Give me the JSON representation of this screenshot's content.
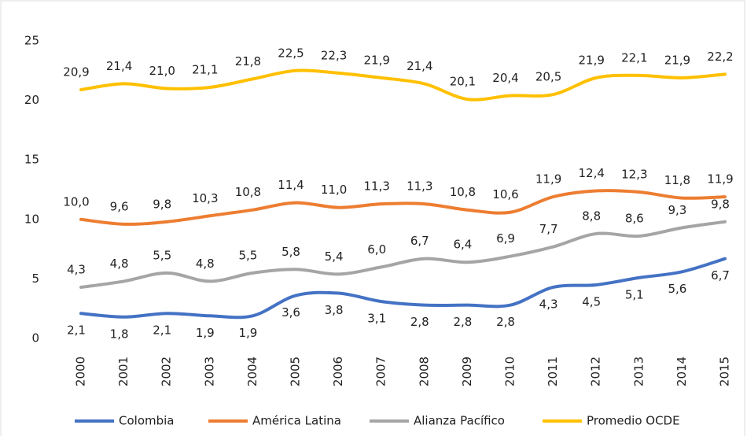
{
  "chart_data": {
    "type": "line",
    "categories": [
      "2000",
      "2001",
      "2002",
      "2003",
      "2004",
      "2005",
      "2006",
      "2007",
      "2008",
      "2009",
      "2010",
      "2011",
      "2012",
      "2013",
      "2014",
      "2015"
    ],
    "ylim": [
      0,
      25
    ],
    "yticks": [
      0,
      5,
      10,
      15,
      20,
      25
    ],
    "grid": false,
    "legend": "bottom",
    "series": [
      {
        "name": "Colombia",
        "color": "#4472c4",
        "values": [
          2.1,
          1.8,
          2.1,
          1.9,
          1.9,
          3.6,
          3.8,
          3.1,
          2.8,
          2.8,
          2.8,
          4.3,
          4.5,
          5.1,
          5.6,
          6.7
        ],
        "value_labels": [
          "2,1",
          "1,8",
          "2,1",
          "1,9",
          "1,9",
          "3,6",
          "3,8",
          "3,1",
          "2,8",
          "2,8",
          "2,8",
          "4,3",
          "4,5",
          "5,1",
          "5,6",
          "6,7"
        ]
      },
      {
        "name": "América Latina",
        "color": "#ed7d31",
        "values": [
          10.0,
          9.6,
          9.8,
          10.3,
          10.8,
          11.4,
          11.0,
          11.3,
          11.3,
          10.8,
          10.6,
          11.9,
          12.4,
          12.3,
          11.8,
          11.9
        ],
        "value_labels": [
          "10,0",
          "9,6",
          "9,8",
          "10,3",
          "10,8",
          "11,4",
          "11,0",
          "11,3",
          "11,3",
          "10,8",
          "10,6",
          "11,9",
          "12,4",
          "12,3",
          "11,8",
          "11,9"
        ]
      },
      {
        "name": "Alianza Pacífico",
        "color": "#a5a5a5",
        "values": [
          4.3,
          4.8,
          5.5,
          4.8,
          5.5,
          5.8,
          5.4,
          6.0,
          6.7,
          6.4,
          6.9,
          7.7,
          8.8,
          8.6,
          9.3,
          9.8
        ],
        "value_labels": [
          "4,3",
          "4,8",
          "5,5",
          "4,8",
          "5,5",
          "5,8",
          "5,4",
          "6,0",
          "6,7",
          "6,4",
          "6,9",
          "7,7",
          "8,8",
          "8,6",
          "9,3",
          "9,8"
        ]
      },
      {
        "name": "Promedio OCDE",
        "color": "#ffc000",
        "values": [
          20.9,
          21.4,
          21.0,
          21.1,
          21.8,
          22.5,
          22.3,
          21.9,
          21.4,
          20.1,
          20.4,
          20.5,
          21.9,
          22.1,
          21.9,
          22.2
        ],
        "value_labels": [
          "20,9",
          "21,4",
          "21,0",
          "21,1",
          "21,8",
          "22,5",
          "22,3",
          "21,9",
          "21,4",
          "20,1",
          "20,4",
          "20,5",
          "21,9",
          "22,1",
          "21,9",
          "22,2"
        ]
      }
    ]
  }
}
